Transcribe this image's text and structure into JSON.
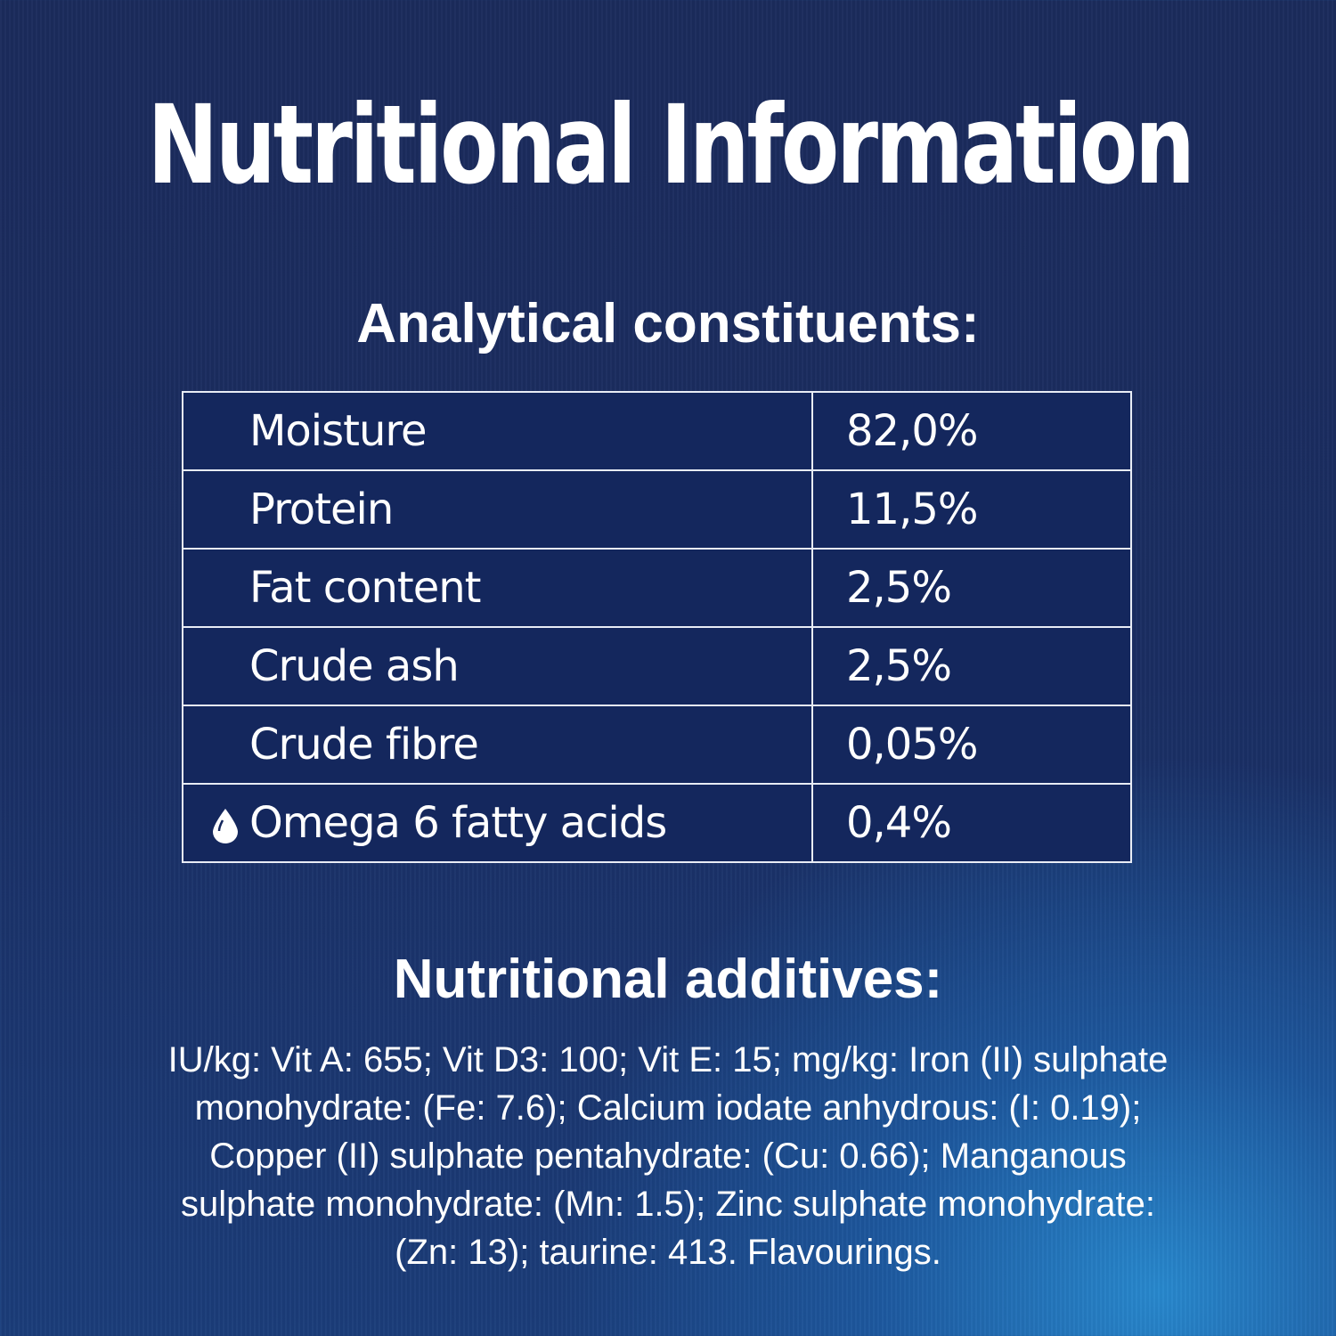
{
  "title": "Nutritional Information",
  "analytical": {
    "heading": "Analytical constituents:",
    "rows": [
      {
        "label": "Moisture",
        "value": "82,0%"
      },
      {
        "label": "Protein",
        "value": "11,5%"
      },
      {
        "label": "Fat content",
        "value": "2,5%"
      },
      {
        "label": "Crude ash",
        "value": "2,5%"
      },
      {
        "label": "Crude fibre",
        "value": "0,05%"
      },
      {
        "label": "Omega 6 fatty acids",
        "value": "0,4%",
        "icon": "droplet-icon"
      }
    ]
  },
  "additives": {
    "heading": "Nutritional additives:",
    "lines": [
      "IU/kg: Vit A: 655; Vit D3: 100; Vit E: 15; mg/kg: Iron (II) sulphate",
      "monohydrate: (Fe: 7.6); Calcium iodate anhydrous: (I: 0.19);",
      "Copper (II) sulphate pentahydrate: (Cu: 0.66); Manganous",
      "sulphate monohydrate: (Mn: 1.5); Zinc sulphate monohydrate:",
      "(Zn: 13); taurine: 413. Flavourings."
    ]
  },
  "colors": {
    "background_top": "#1b2b5c",
    "background_bottom_right": "#2a8cd2",
    "text": "#ffffff"
  }
}
